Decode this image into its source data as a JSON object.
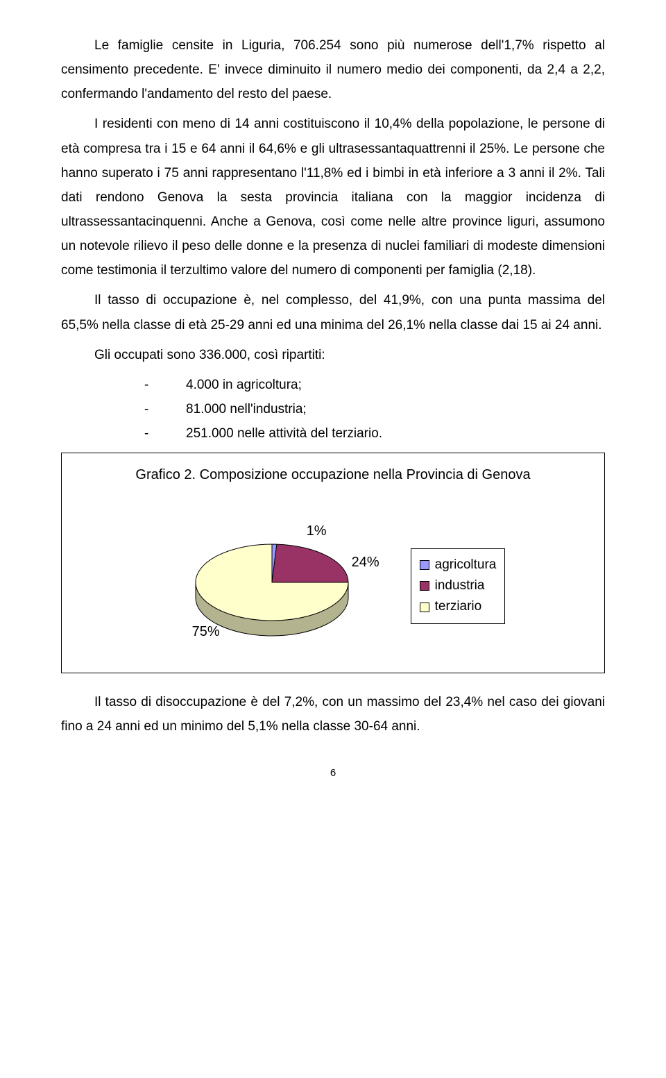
{
  "paragraphs": {
    "p1": "Le famiglie censite in Liguria, 706.254 sono più numerose dell'1,7% rispetto al censimento precedente. E' invece diminuito il numero medio dei componenti, da 2,4 a 2,2, confermando l'andamento del resto del paese.",
    "p2": "I residenti con meno di 14 anni costituiscono il 10,4% della popolazione, le persone di età compresa tra i 15 e 64 anni il 64,6% e gli ultrasessantaquattrenni il 25%. Le persone che hanno superato i 75 anni rappresentano l'11,8% ed i bimbi in età inferiore a 3 anni il 2%. Tali dati rendono Genova la sesta provincia italiana con la maggior incidenza di ultrassessantacinquenni. Anche a Genova, così come nelle altre province liguri, assumono un notevole rilievo il peso delle donne e la presenza di nuclei familiari di modeste dimensioni come testimonia il terzultimo valore del numero di componenti per famiglia (2,18).",
    "p3": "Il tasso di occupazione è, nel complesso, del 41,9%, con una punta massima del 65,5% nella classe di età 25-29 anni ed una minima del 26,1% nella classe dai 15 ai 24 anni.",
    "p4": "Gli occupati sono 336.000, così ripartiti:",
    "p5": "Il tasso di disoccupazione è del 7,2%, con un massimo del 23,4% nel caso dei giovani fino a 24 anni ed un minimo del 5,1% nella classe 30-64 anni."
  },
  "bullets": [
    "4.000 in agricoltura;",
    "81.000 nell'industria;",
    "251.000 nelle attività del terziario."
  ],
  "chart": {
    "title": "Grafico 2. Composizione occupazione nella Provincia di Genova",
    "type": "pie",
    "slices": [
      {
        "label": "agricoltura",
        "value": 1,
        "display": "1%",
        "color": "#9999ff"
      },
      {
        "label": "industria",
        "value": 24,
        "display": "24%",
        "color": "#993366"
      },
      {
        "label": "terziario",
        "value": 75,
        "display": "75%",
        "color": "#ffffcc"
      }
    ],
    "outline_color": "#000000",
    "background_color": "#ffffff",
    "label_fontsize": 20,
    "depth_color_factor": 0.7
  },
  "page_number": "6"
}
